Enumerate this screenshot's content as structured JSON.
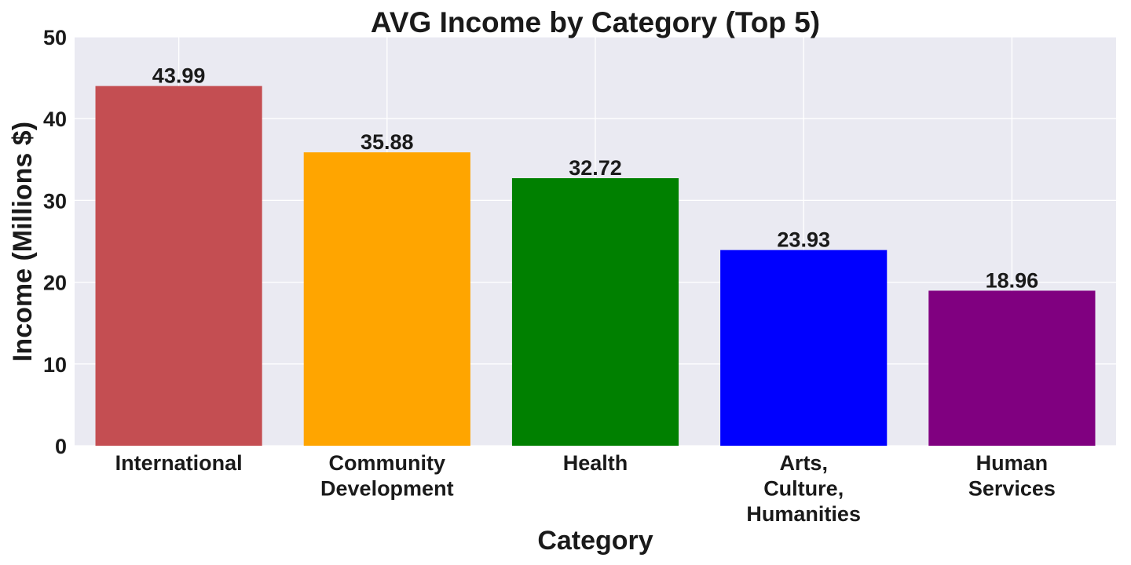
{
  "chart_data": {
    "type": "bar",
    "title": "AVG Income by Category (Top 5)",
    "xlabel": "Category",
    "ylabel": "Income (Millions $)",
    "categories": [
      [
        "International"
      ],
      [
        "Community",
        "Development"
      ],
      [
        "Health"
      ],
      [
        "Arts,",
        "Culture,",
        "Humanities"
      ],
      [
        "Human",
        "Services"
      ]
    ],
    "values": [
      43.99,
      35.88,
      32.72,
      23.93,
      18.96
    ],
    "data_labels": [
      "43.99",
      "35.88",
      "32.72",
      "23.93",
      "18.96"
    ],
    "colors": [
      "#c44e52",
      "#ffa500",
      "#008000",
      "#0000ff",
      "#800080"
    ],
    "ylim": [
      0,
      50
    ],
    "yticks": [
      0,
      10,
      20,
      30,
      40,
      50
    ],
    "grid": true,
    "plot_background": "#eaeaf2",
    "grid_color": "#ffffff"
  }
}
